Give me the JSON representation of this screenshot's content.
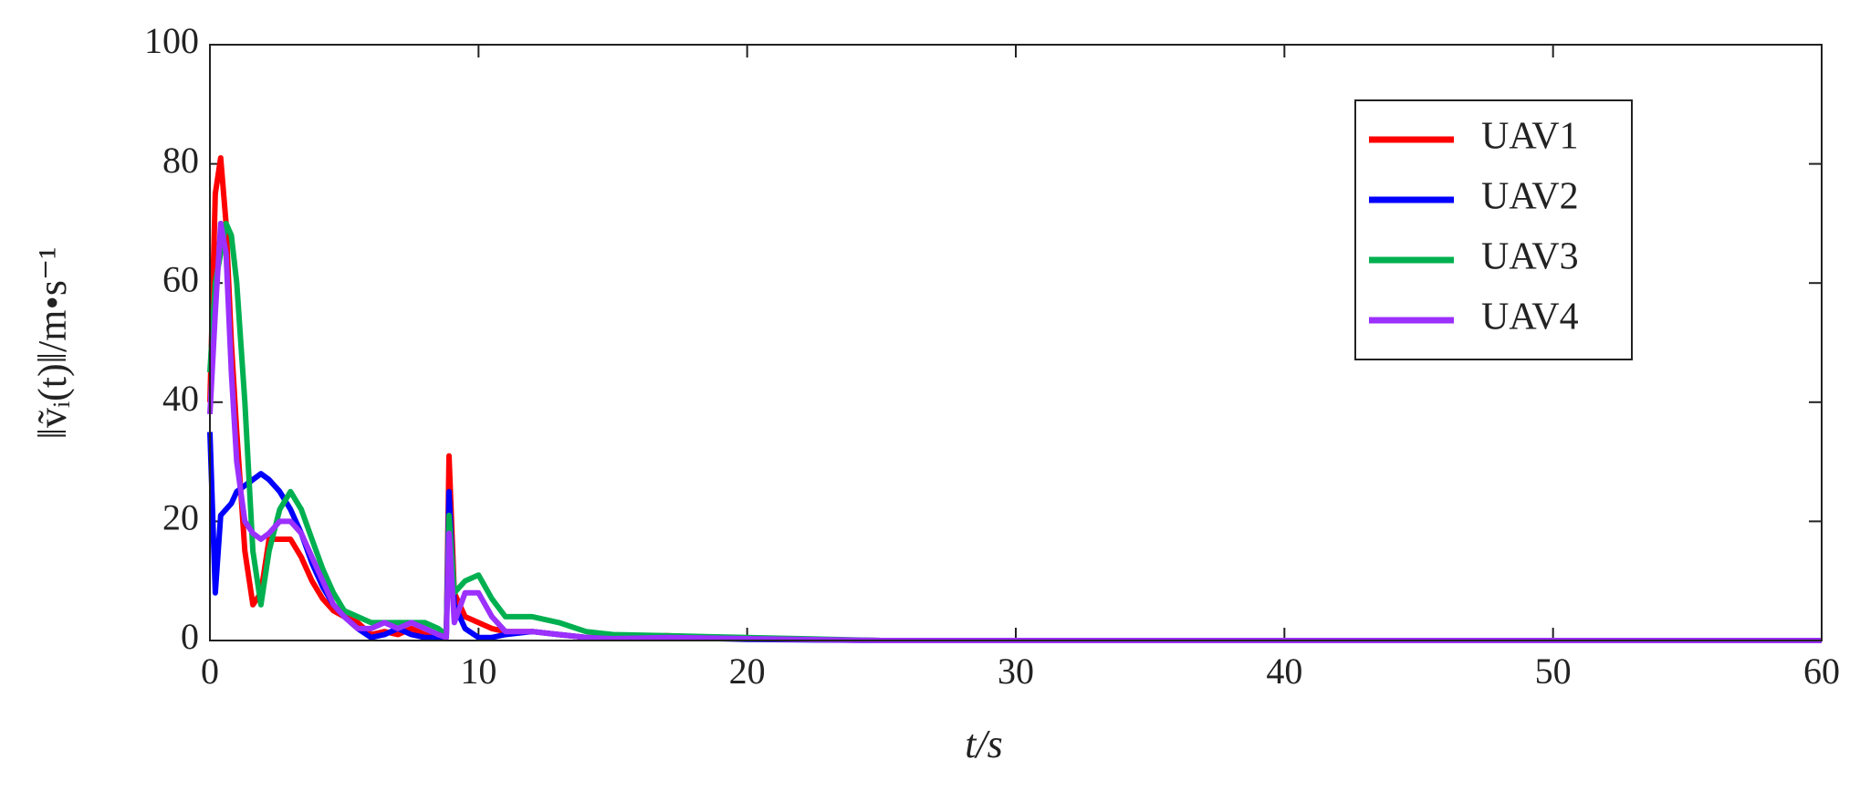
{
  "chart_data": {
    "type": "line",
    "x_label": "t/s",
    "y_label": "‖ṽᵢ(t)‖/m•s⁻¹",
    "x": [
      0,
      0.2,
      0.4,
      0.6,
      0.8,
      1.0,
      1.3,
      1.6,
      1.9,
      2.2,
      2.6,
      3.0,
      3.4,
      3.8,
      4.2,
      4.6,
      5.0,
      5.5,
      6.0,
      6.5,
      7.0,
      7.5,
      8.0,
      8.5,
      8.8,
      8.9,
      9.1,
      9.5,
      10,
      10.5,
      11,
      12,
      13,
      14,
      15,
      17,
      20,
      25,
      30,
      40,
      50,
      60
    ],
    "series": [
      {
        "name": "UAV1",
        "color": "#ff0000",
        "values": [
          40,
          75,
          81,
          70,
          50,
          35,
          15,
          6,
          8,
          17,
          17,
          17,
          14,
          10,
          7,
          5,
          4,
          3,
          1,
          1.5,
          1,
          2,
          1,
          0.5,
          0.5,
          31,
          8,
          4,
          3,
          2,
          1.5,
          1.5,
          1,
          0.5,
          0.5,
          0.8,
          0.3,
          0,
          0,
          0,
          0,
          0
        ]
      },
      {
        "name": "UAV2",
        "color": "#0000ff",
        "values": [
          35,
          8,
          21,
          22,
          23,
          25,
          26,
          27,
          28,
          27,
          25,
          22,
          18,
          13,
          9,
          6,
          4,
          2,
          0.5,
          1,
          2,
          1,
          0.5,
          0.5,
          0.5,
          25,
          6,
          2,
          0.5,
          0.5,
          1,
          1.5,
          1,
          0.5,
          0.3,
          0.5,
          0.2,
          0,
          0,
          0,
          0,
          0
        ]
      },
      {
        "name": "UAV3",
        "color": "#00b050",
        "values": [
          45,
          60,
          65,
          70,
          68,
          60,
          40,
          15,
          6,
          15,
          22,
          25,
          22,
          17,
          12,
          8,
          5,
          4,
          3,
          3,
          3,
          3,
          3,
          2,
          1,
          21,
          8,
          10,
          11,
          7,
          4,
          4,
          3,
          1.5,
          1,
          0.8,
          0.5,
          0,
          0,
          0,
          0,
          0
        ]
      },
      {
        "name": "UAV4",
        "color": "#9b30ff",
        "values": [
          38,
          55,
          70,
          65,
          45,
          30,
          20,
          18,
          17,
          18,
          20,
          20,
          18,
          14,
          10,
          6,
          4,
          2,
          2,
          3,
          2,
          3,
          2,
          1,
          0.5,
          18,
          3,
          8,
          8,
          4,
          1.5,
          1.5,
          1,
          0.5,
          0.3,
          0.5,
          0.3,
          0,
          0,
          0,
          0,
          0
        ]
      }
    ],
    "xlim": [
      0,
      60
    ],
    "xticks": [
      0,
      10,
      20,
      30,
      40,
      50,
      60
    ],
    "ylim": [
      0,
      100
    ],
    "yticks": [
      0,
      20,
      40,
      60,
      80,
      100
    ],
    "legend": "upper-right"
  }
}
